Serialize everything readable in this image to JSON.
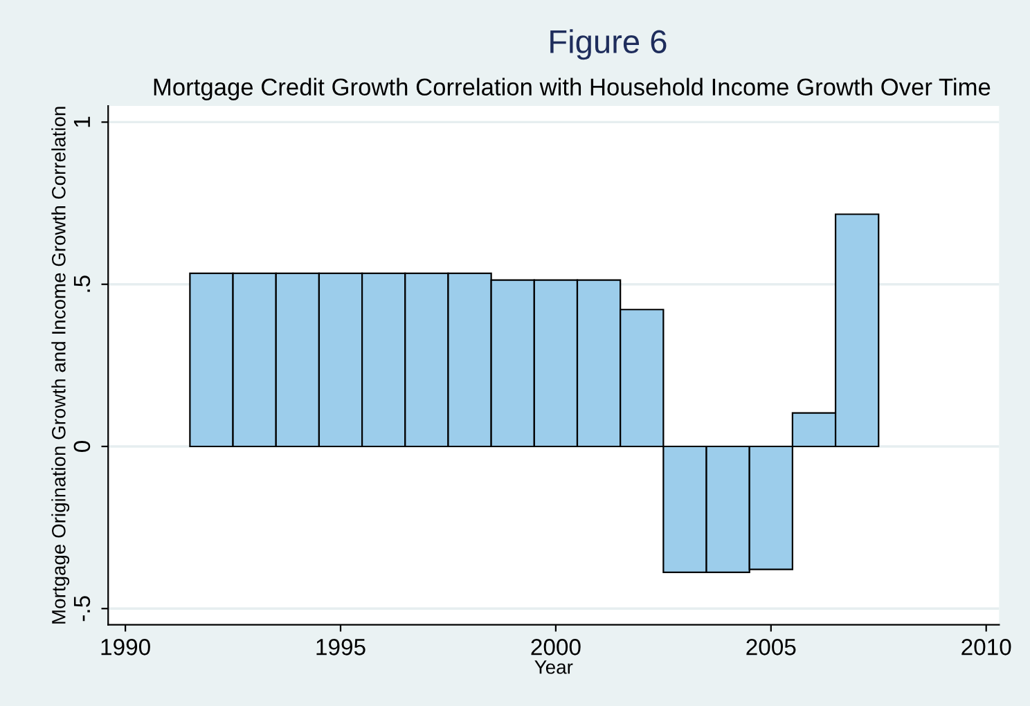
{
  "chart_data": {
    "type": "bar",
    "title": "Figure 6",
    "subtitle": "Mortgage Credit Growth Correlation with Household Income Growth Over Time",
    "xlabel": "Year",
    "ylabel": "Mortgage Origination Growth and Income Growth Correlation",
    "x": [
      1992,
      1993,
      1994,
      1995,
      1996,
      1997,
      1998,
      1999,
      2000,
      2001,
      2002,
      2003,
      2004,
      2005,
      2006,
      2007
    ],
    "values": [
      0.534,
      0.534,
      0.534,
      0.534,
      0.534,
      0.534,
      0.534,
      0.513,
      0.513,
      0.513,
      0.422,
      -0.388,
      -0.388,
      -0.379,
      0.103,
      0.716
    ],
    "color": "#9ccdeb",
    "xlim": [
      1989.6,
      2010.3
    ],
    "xticks": [
      1990,
      1995,
      2000,
      2005,
      2010
    ],
    "ylim": [
      -0.55,
      1.05
    ],
    "yticks": [
      {
        "value": -0.5,
        "label": "-.5"
      },
      0,
      {
        "value": 0.5,
        "label": ".5"
      },
      1
    ],
    "grid": "y",
    "legend": false
  }
}
